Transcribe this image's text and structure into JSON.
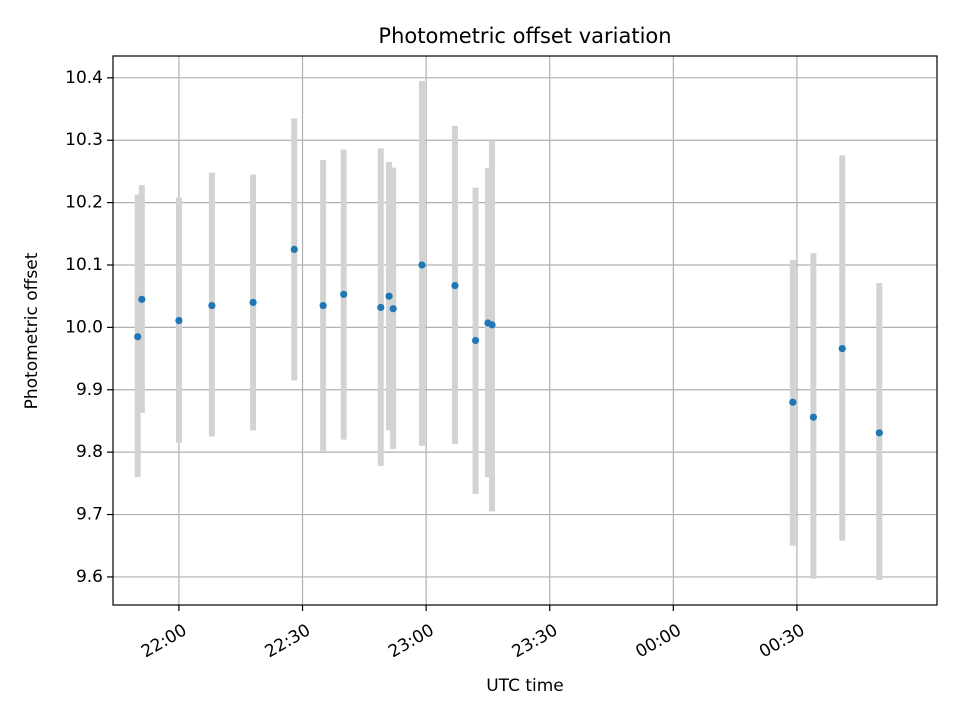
{
  "chart_data": {
    "type": "scatter",
    "title": "Photometric offset variation",
    "xlabel": "UTC time",
    "ylabel": "Photometric offset",
    "x_axis_kind": "time",
    "xlim": [
      "21:44",
      "01:04"
    ],
    "ylim": [
      9.555,
      10.435
    ],
    "grid": true,
    "x_ticks": [
      {
        "time": "22:00",
        "label": "22:00"
      },
      {
        "time": "22:30",
        "label": "22:30"
      },
      {
        "time": "23:00",
        "label": "23:00"
      },
      {
        "time": "23:30",
        "label": "23:30"
      },
      {
        "time": "00:00",
        "label": "00:00"
      },
      {
        "time": "00:30",
        "label": "00:30"
      }
    ],
    "y_ticks": [
      9.6,
      9.7,
      9.8,
      9.9,
      10.0,
      10.1,
      10.2,
      10.3,
      10.4
    ],
    "point_color": "#1f77b4",
    "errorbar_color": "#d3d3d3",
    "points": [
      {
        "time": "21:50",
        "y": 9.985,
        "ylow": 9.76,
        "yhigh": 10.213
      },
      {
        "time": "21:51",
        "y": 10.045,
        "ylow": 9.863,
        "yhigh": 10.228
      },
      {
        "time": "22:00",
        "y": 10.011,
        "ylow": 9.815,
        "yhigh": 10.208
      },
      {
        "time": "22:08",
        "y": 10.035,
        "ylow": 9.825,
        "yhigh": 10.248
      },
      {
        "time": "22:18",
        "y": 10.04,
        "ylow": 9.835,
        "yhigh": 10.245
      },
      {
        "time": "22:28",
        "y": 10.125,
        "ylow": 9.915,
        "yhigh": 10.335
      },
      {
        "time": "22:35",
        "y": 10.035,
        "ylow": 9.802,
        "yhigh": 10.268
      },
      {
        "time": "22:40",
        "y": 10.053,
        "ylow": 9.82,
        "yhigh": 10.285
      },
      {
        "time": "22:49",
        "y": 10.032,
        "ylow": 9.778,
        "yhigh": 10.287
      },
      {
        "time": "22:51",
        "y": 10.05,
        "ylow": 9.835,
        "yhigh": 10.265
      },
      {
        "time": "22:52",
        "y": 10.03,
        "ylow": 9.805,
        "yhigh": 10.256
      },
      {
        "time": "22:59",
        "y": 10.1,
        "ylow": 9.81,
        "yhigh": 10.395
      },
      {
        "time": "23:07",
        "y": 10.067,
        "ylow": 9.813,
        "yhigh": 10.323
      },
      {
        "time": "23:12",
        "y": 9.979,
        "ylow": 9.733,
        "yhigh": 10.224
      },
      {
        "time": "23:15",
        "y": 10.007,
        "ylow": 9.76,
        "yhigh": 10.255
      },
      {
        "time": "23:16",
        "y": 10.004,
        "ylow": 9.705,
        "yhigh": 10.3
      },
      {
        "time": "00:29",
        "y": 9.88,
        "ylow": 9.65,
        "yhigh": 10.108
      },
      {
        "time": "00:34",
        "y": 9.856,
        "ylow": 9.597,
        "yhigh": 10.119
      },
      {
        "time": "00:41",
        "y": 9.966,
        "ylow": 9.658,
        "yhigh": 10.276
      },
      {
        "time": "00:50",
        "y": 9.831,
        "ylow": 9.595,
        "yhigh": 10.071
      }
    ]
  }
}
